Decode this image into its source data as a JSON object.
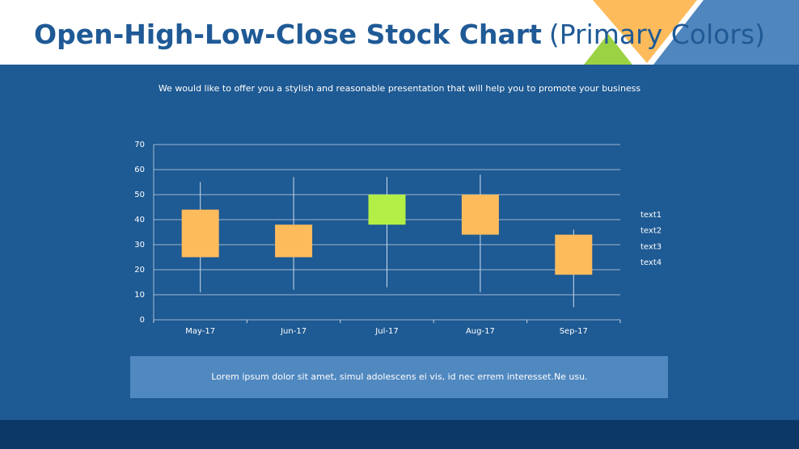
{
  "header": {
    "title": "Open-High-Low-Close Stock Chart",
    "title_note": "(Primary Colors)"
  },
  "subtitle": "We would like to offer you a stylish and reasonable presentation that will help you to promote your business",
  "footer_text": "Lorem ipsum dolor sit amet, simul adolescens ei vis, id nec errem interesset.Ne usu.",
  "chart_data": {
    "type": "candlestick",
    "categories": [
      "May-17",
      "Jun-17",
      "Jul-17",
      "Aug-17",
      "Sep-17"
    ],
    "series": [
      {
        "name": "text1",
        "values": [
          44,
          38,
          38,
          50,
          34
        ]
      },
      {
        "name": "text2",
        "values": [
          55,
          57,
          57,
          58,
          36
        ]
      },
      {
        "name": "text3",
        "values": [
          11,
          12,
          13,
          11,
          5
        ]
      },
      {
        "name": "text4",
        "values": [
          25,
          25,
          50,
          34,
          18
        ]
      }
    ],
    "up_color": "#b3ef47",
    "down_color": "#fdbb5c",
    "ylim": [
      0,
      70
    ],
    "yticks": [
      0,
      10,
      20,
      30,
      40,
      50,
      60,
      70
    ],
    "grid": true
  }
}
